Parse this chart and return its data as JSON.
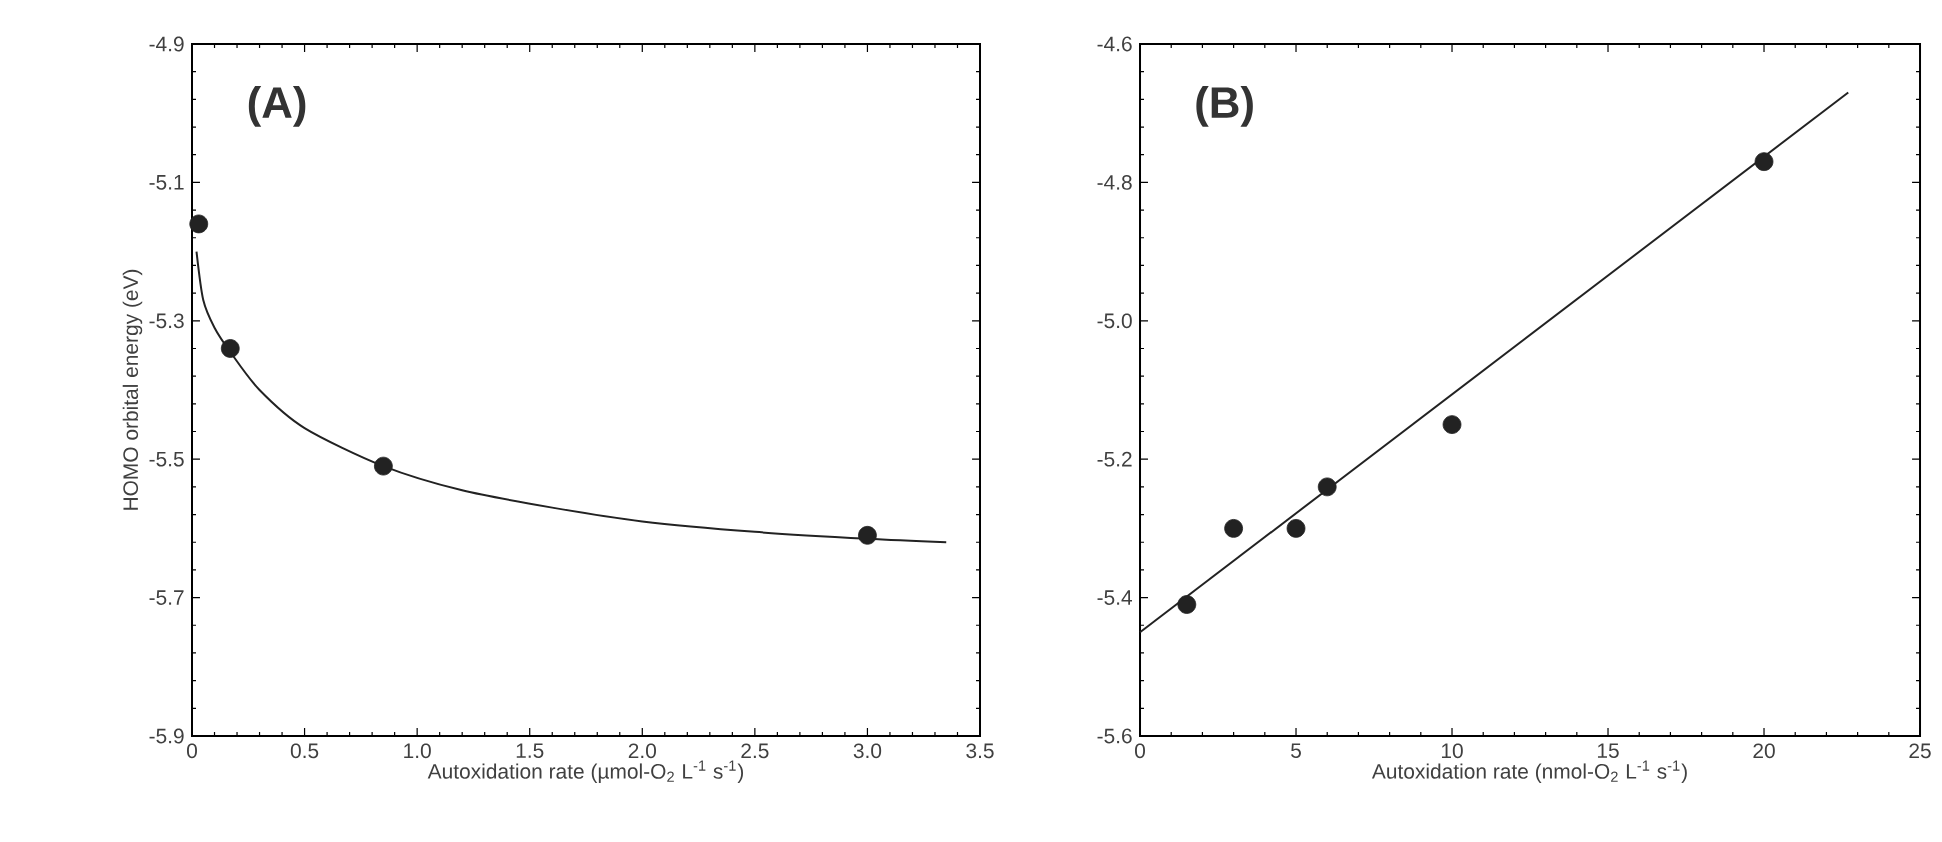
{
  "chart_data": [
    {
      "type": "scatter",
      "ylabel": "HOMO orbital energy (eV)",
      "xlabel": "Autoxidation rate (µmol-O$_{2}$ L$^{-1}$ s$^{-1}$)",
      "annotations": [
        "(A)"
      ],
      "xlim": [
        0,
        3.5
      ],
      "ylim": [
        -5.9,
        -4.9
      ],
      "xticks": [
        0,
        {
          "value": 0.5,
          "label": "0.5"
        },
        {
          "value": 1,
          "label": "1.0"
        },
        {
          "value": 1.5,
          "label": "1.5"
        },
        {
          "value": 2,
          "label": "2.0"
        },
        {
          "value": 2.5,
          "label": "2.5"
        },
        {
          "value": 3,
          "label": "3.0"
        },
        {
          "value": 3.5,
          "label": "3.5"
        }
      ],
      "yticks": [
        -5.9,
        -5.7,
        -5.5,
        -5.3,
        -5.1,
        -4.9
      ],
      "series": [
        {
          "marker": "circle",
          "color": "#222222",
          "x": [
            0.03,
            0.17,
            0.85,
            3.0
          ],
          "values": [
            -5.16,
            -5.34,
            -5.51,
            -5.61
          ]
        },
        {
          "type": "line",
          "color": "#222222",
          "x": [
            0.02,
            0.05,
            0.1,
            0.17,
            0.3,
            0.5,
            0.85,
            1.2,
            1.6,
            2.0,
            2.5,
            3.0,
            3.35
          ],
          "values": [
            -5.2,
            -5.27,
            -5.31,
            -5.345,
            -5.4,
            -5.455,
            -5.51,
            -5.545,
            -5.57,
            -5.59,
            -5.605,
            -5.615,
            -5.62
          ]
        }
      ]
    },
    {
      "type": "scatter",
      "xlabel": "Autoxidation rate (nmol-O$_{2}$ L$^{-1}$ s$^{-1}$)",
      "annotations": [
        "(B)"
      ],
      "xlim": [
        0,
        25
      ],
      "ylim": [
        -5.6,
        -4.6
      ],
      "xticks": [
        0,
        5,
        10,
        15,
        20,
        25
      ],
      "yticks": [
        -5.6,
        {
          "value": -5.4,
          "label": "-5.4"
        },
        {
          "value": -5.2,
          "label": "-5.2"
        },
        {
          "value": -5.0,
          "label": "-5.0"
        },
        {
          "value": -4.8,
          "label": "-4.8"
        },
        {
          "value": -4.6,
          "label": "-4.6"
        }
      ],
      "series": [
        {
          "marker": "circle",
          "color": "#222222",
          "x": [
            1.5,
            3,
            5,
            6,
            10,
            20
          ],
          "values": [
            -5.41,
            -5.3,
            -5.3,
            -5.24,
            -5.15,
            -4.77
          ]
        },
        {
          "type": "line",
          "color": "#222222",
          "x": [
            0,
            22.7
          ],
          "values": [
            -5.45,
            -4.67
          ]
        }
      ]
    }
  ]
}
